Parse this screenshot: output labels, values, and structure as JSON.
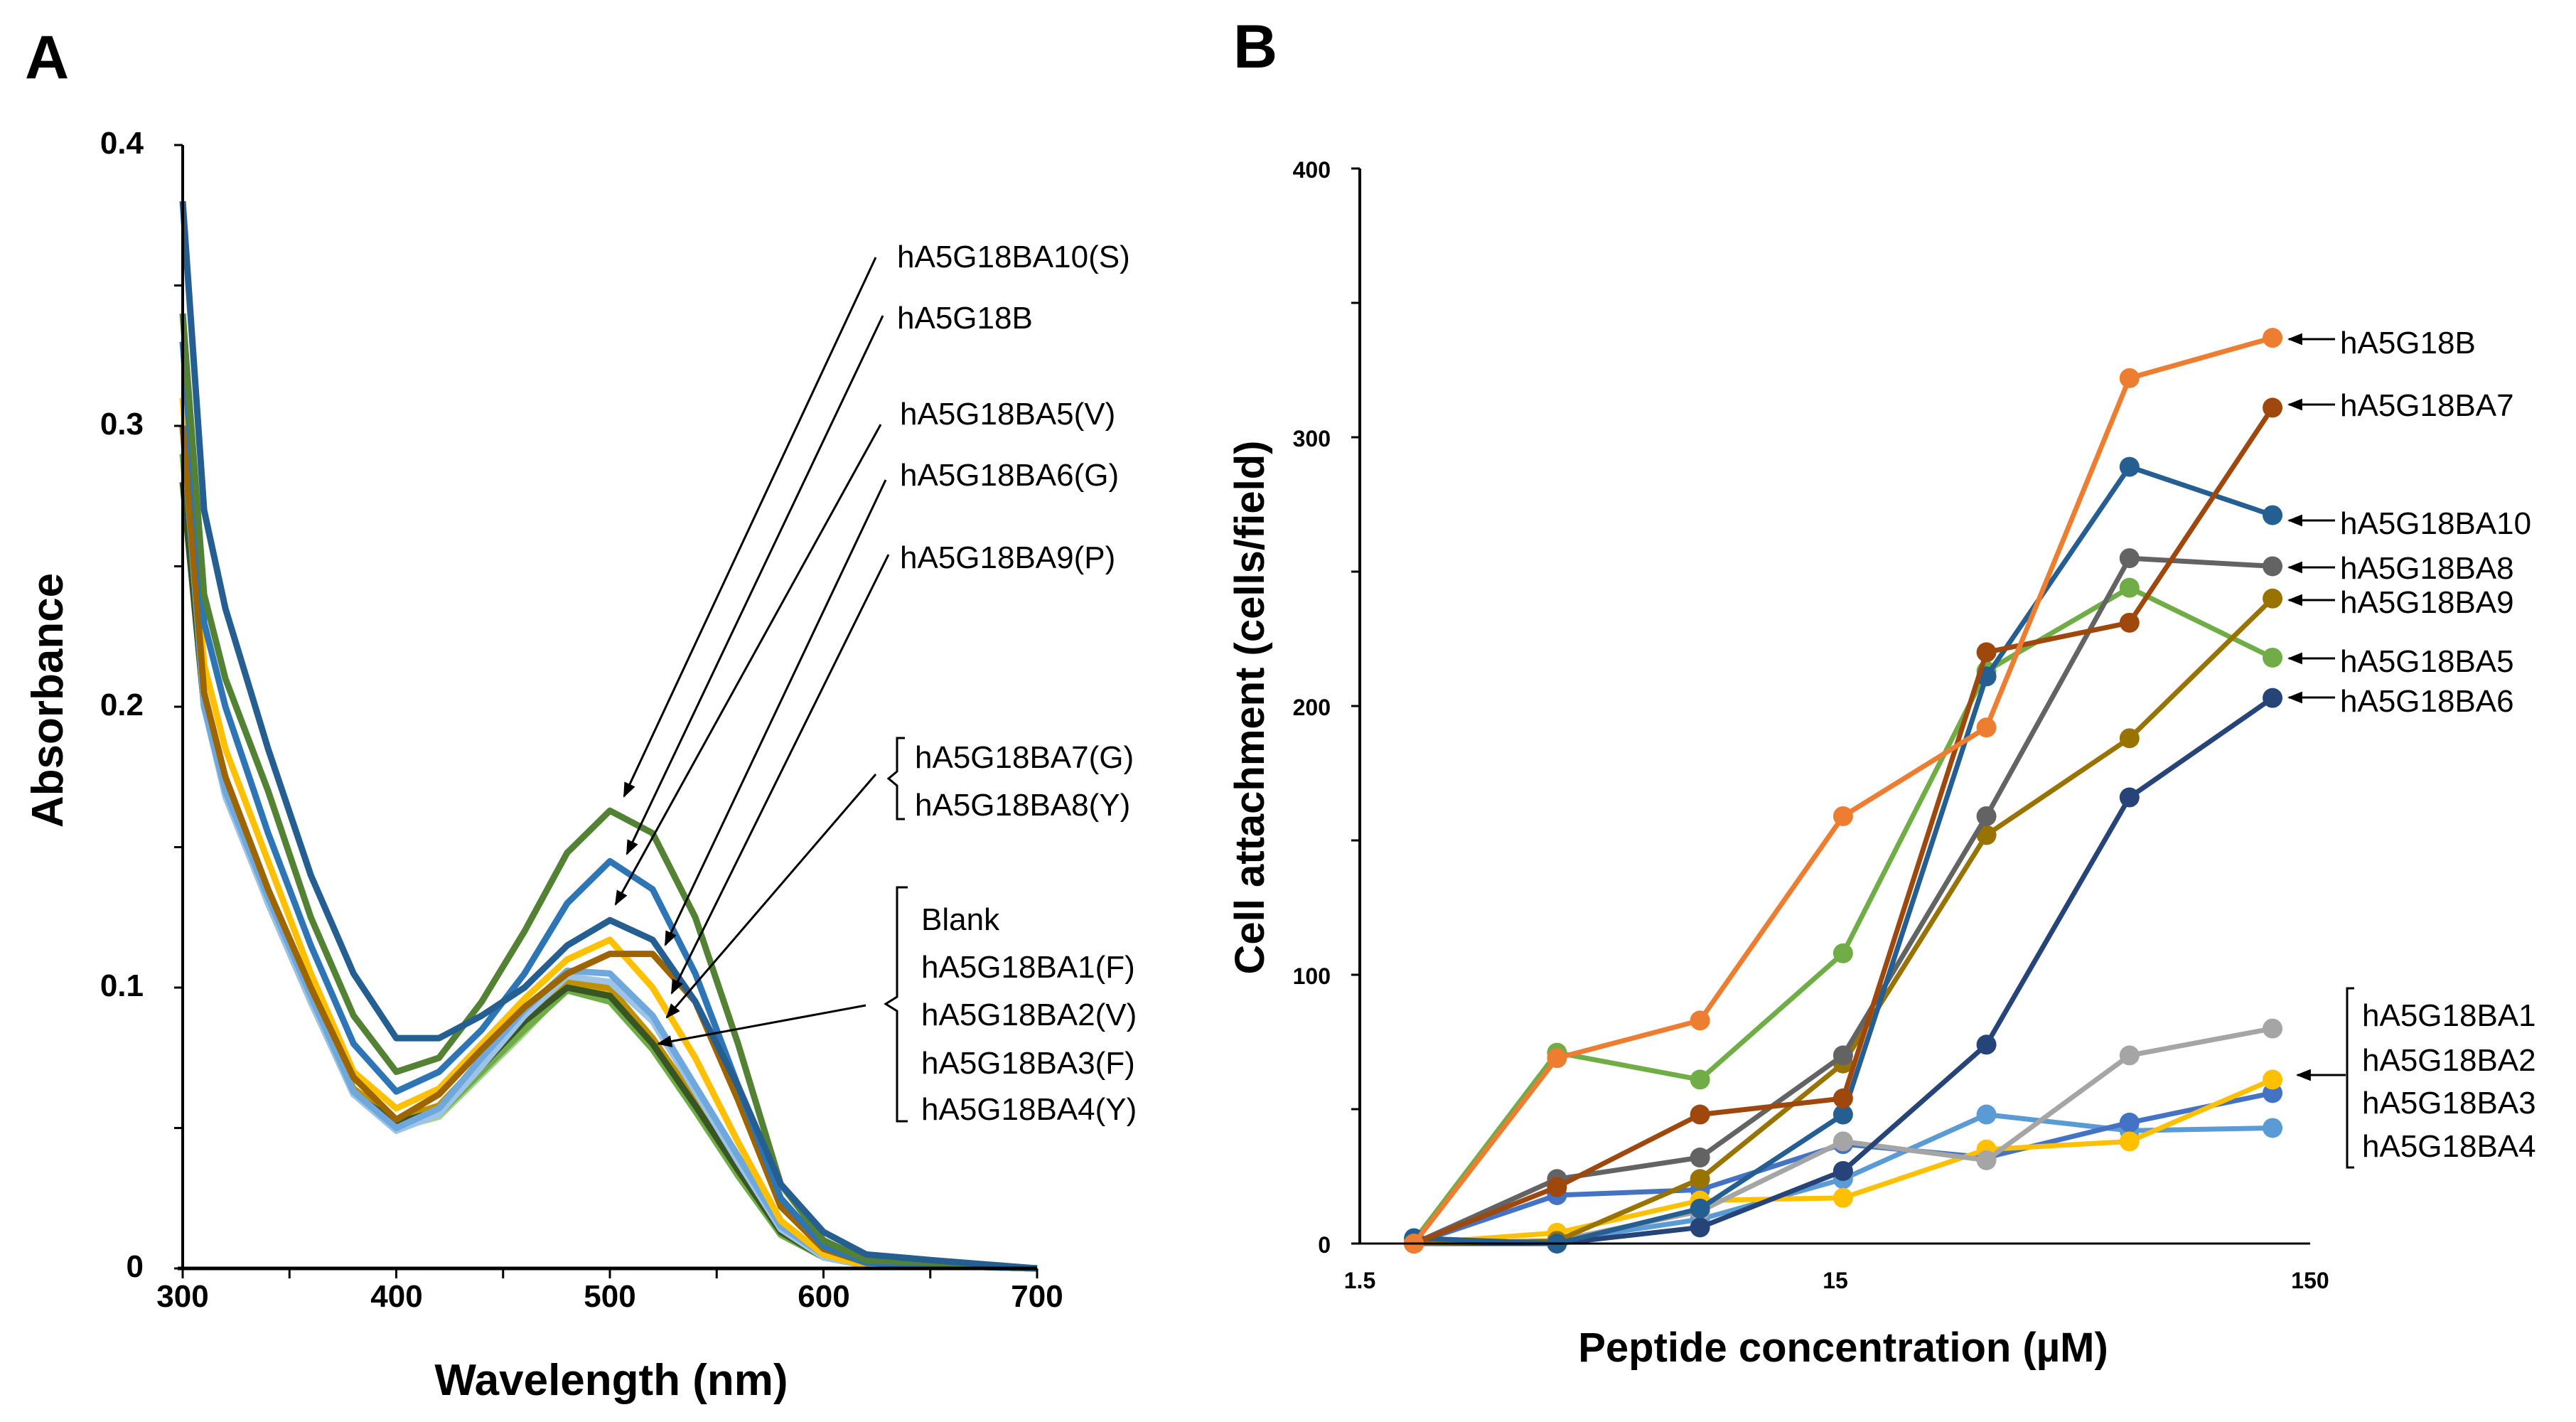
{
  "chart_data": [
    {
      "panel": "A",
      "type": "line",
      "xlabel": "Wavelength (nm)",
      "ylabel": "Absorbance",
      "xlim": [
        300,
        700
      ],
      "ylim": [
        0,
        0.4
      ],
      "xticks": [
        "300",
        "400",
        "500",
        "600",
        "700"
      ],
      "yticks": [
        "0",
        "0.1",
        "0.2",
        "0.3",
        "0.4"
      ],
      "x": [
        300,
        310,
        320,
        340,
        360,
        380,
        400,
        420,
        440,
        460,
        480,
        500,
        520,
        540,
        560,
        580,
        600,
        620,
        650,
        700
      ],
      "series": [
        {
          "name": "hA5G18BA5(V)",
          "color": "#255e91",
          "values": [
            0.38,
            0.27,
            0.235,
            0.185,
            0.14,
            0.105,
            0.082,
            0.082,
            0.09,
            0.1,
            0.115,
            0.124,
            0.117,
            0.095,
            0.065,
            0.03,
            0.013,
            0.005,
            0.003,
            0
          ]
        },
        {
          "name": "hA5G18BA10(S)",
          "color": "#548235",
          "values": [
            0.34,
            0.24,
            0.21,
            0.17,
            0.125,
            0.09,
            0.07,
            0.075,
            0.095,
            0.12,
            0.148,
            0.163,
            0.155,
            0.125,
            0.08,
            0.03,
            0.01,
            0.003,
            0.002,
            0
          ]
        },
        {
          "name": "hA5G18B",
          "color": "#2e75b6",
          "values": [
            0.33,
            0.23,
            0.2,
            0.155,
            0.115,
            0.08,
            0.063,
            0.07,
            0.085,
            0.105,
            0.13,
            0.145,
            0.135,
            0.105,
            0.065,
            0.025,
            0.008,
            0.002,
            0.001,
            0
          ]
        },
        {
          "name": "hA5G18BA6(G)",
          "color": "#9c6500",
          "values": [
            0.3,
            0.205,
            0.175,
            0.135,
            0.1,
            0.068,
            0.053,
            0.062,
            0.078,
            0.093,
            0.105,
            0.112,
            0.112,
            0.095,
            0.06,
            0.022,
            0.007,
            0.002,
            0.002,
            0
          ]
        },
        {
          "name": "hA5G18BA9(P)",
          "color": "#ffc000",
          "values": [
            0.31,
            0.215,
            0.185,
            0.145,
            0.105,
            0.07,
            0.057,
            0.064,
            0.08,
            0.096,
            0.11,
            0.117,
            0.1,
            0.075,
            0.045,
            0.017,
            0.005,
            0.001,
            0.001,
            0
          ]
        },
        {
          "name": "hA5G18BA7(G)",
          "color": "#6fa8dc",
          "values": [
            0.3,
            0.2,
            0.17,
            0.132,
            0.097,
            0.063,
            0.05,
            0.057,
            0.075,
            0.092,
            0.106,
            0.105,
            0.09,
            0.065,
            0.04,
            0.015,
            0.005,
            0.001,
            0.001,
            0
          ]
        },
        {
          "name": "hA5G18BA8(Y)",
          "color": "#9dc3e6",
          "values": [
            0.3,
            0.2,
            0.168,
            0.13,
            0.095,
            0.062,
            0.049,
            0.055,
            0.072,
            0.09,
            0.104,
            0.102,
            0.088,
            0.063,
            0.038,
            0.014,
            0.004,
            0.001,
            0.001,
            0
          ]
        },
        {
          "name": "Blank",
          "color": "#375623",
          "values": [
            0.28,
            0.2,
            0.17,
            0.13,
            0.095,
            0.062,
            0.052,
            0.056,
            0.072,
            0.088,
            0.1,
            0.097,
            0.08,
            0.058,
            0.035,
            0.013,
            0.004,
            0.001,
            0.001,
            0
          ]
        },
        {
          "name": "hA5G18BA1(F)",
          "color": "#70ad47",
          "values": [
            0.29,
            0.2,
            0.17,
            0.13,
            0.095,
            0.062,
            0.05,
            0.055,
            0.07,
            0.085,
            0.099,
            0.095,
            0.078,
            0.056,
            0.033,
            0.012,
            0.004,
            0.001,
            0.001,
            0
          ]
        },
        {
          "name": "hA5G18BA2(V)",
          "color": "#a9d18e",
          "values": [
            0.29,
            0.2,
            0.17,
            0.13,
            0.096,
            0.062,
            0.05,
            0.054,
            0.069,
            0.084,
            0.1,
            0.096,
            0.079,
            0.057,
            0.034,
            0.012,
            0.004,
            0.001,
            0.001,
            0
          ]
        },
        {
          "name": "hA5G18BA3(F)",
          "color": "#bf9000",
          "values": [
            0.3,
            0.205,
            0.172,
            0.132,
            0.097,
            0.064,
            0.053,
            0.058,
            0.074,
            0.09,
            0.102,
            0.1,
            0.082,
            0.06,
            0.036,
            0.013,
            0.004,
            0.001,
            0.002,
            0
          ]
        },
        {
          "name": "hA5G18BA4(Y)",
          "color": "#d4a017",
          "values": [
            0.3,
            0.2,
            0.17,
            0.131,
            0.096,
            0.063,
            0.052,
            0.057,
            0.073,
            0.089,
            0.101,
            0.099,
            0.081,
            0.059,
            0.035,
            0.012,
            0.004,
            0.001,
            0.001,
            0
          ]
        }
      ],
      "annotations": {
        "single": [
          "hA5G18BA10(S)",
          "hA5G18B",
          "hA5G18BA5(V)",
          "hA5G18BA6(G)",
          "hA5G18BA9(P)"
        ],
        "group1": [
          "hA5G18BA7(G)",
          "hA5G18BA8(Y)"
        ],
        "group2": [
          "Blank",
          "hA5G18BA1(F)",
          "hA5G18BA2(V)",
          "hA5G18BA3(F)",
          "hA5G18BA4(Y)"
        ]
      }
    },
    {
      "panel": "B",
      "type": "line",
      "xscale": "log",
      "xlabel": "Peptide concentration (µM)",
      "ylabel": "Cell attachment (cells/field)",
      "xlim": [
        1.5,
        150
      ],
      "ylim": [
        0,
        400
      ],
      "xticks": [
        "1.5",
        "15",
        "150"
      ],
      "yticks": [
        "0",
        "100",
        "200",
        "300",
        "400"
      ],
      "x": [
        1.95,
        3.9,
        7.8,
        15.6,
        31.25,
        62.5,
        125
      ],
      "series": [
        {
          "name": "hA5G18B",
          "color": "#ed7d31",
          "values": [
            0,
            69,
            83,
            159,
            192,
            322,
            337
          ]
        },
        {
          "name": "hA5G18BA7",
          "color": "#9e480e",
          "values": [
            0,
            21,
            48,
            54,
            220,
            231,
            311
          ]
        },
        {
          "name": "hA5G18BA10",
          "color": "#255e91",
          "values": [
            2,
            0,
            13,
            48,
            211,
            289,
            271
          ]
        },
        {
          "name": "hA5G18BA8",
          "color": "#636363",
          "values": [
            0,
            24,
            32,
            70,
            159,
            255,
            252
          ]
        },
        {
          "name": "hA5G18BA9",
          "color": "#997300",
          "values": [
            0,
            1,
            24,
            67,
            152,
            188,
            240
          ]
        },
        {
          "name": "hA5G18BA5",
          "color": "#70ad47",
          "values": [
            1,
            71,
            61,
            108,
            213,
            244,
            218
          ]
        },
        {
          "name": "hA5G18BA6",
          "color": "#264478",
          "values": [
            0,
            0,
            6,
            27,
            74,
            166,
            203
          ]
        },
        {
          "name": "hA5G18BA1",
          "color": "#a5a5a5",
          "values": [
            0,
            1,
            12,
            38,
            31,
            70,
            80
          ]
        },
        {
          "name": "hA5G18BA2",
          "color": "#ffc000",
          "values": [
            0,
            4,
            16,
            17,
            35,
            38,
            61
          ]
        },
        {
          "name": "hA5G18BA3",
          "color": "#4472c4",
          "values": [
            0,
            18,
            20,
            37,
            32,
            45,
            56
          ]
        },
        {
          "name": "hA5G18BA4",
          "color": "#5b9bd5",
          "values": [
            0,
            1,
            9,
            24,
            48,
            42,
            43
          ]
        }
      ],
      "annotations": {
        "single": [
          "hA5G18B",
          "hA5G18BA7",
          "hA5G18BA10",
          "hA5G18BA8",
          "hA5G18BA9",
          "hA5G18BA5",
          "hA5G18BA6"
        ],
        "group": [
          "hA5G18BA1",
          "hA5G18BA2",
          "hA5G18BA3",
          "hA5G18BA4"
        ]
      }
    }
  ],
  "panels": {
    "a_letter": "A",
    "b_letter": "B"
  }
}
